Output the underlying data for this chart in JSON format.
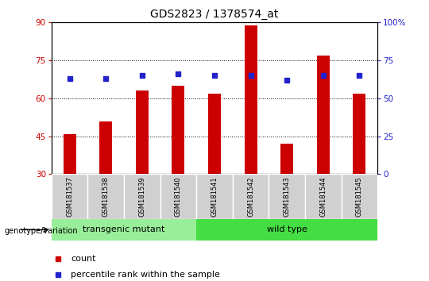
{
  "title": "GDS2823 / 1378574_at",
  "samples": [
    "GSM181537",
    "GSM181538",
    "GSM181539",
    "GSM181540",
    "GSM181541",
    "GSM181542",
    "GSM181543",
    "GSM181544",
    "GSM181545"
  ],
  "counts": [
    46,
    51,
    63,
    65,
    62,
    89,
    42,
    77,
    62
  ],
  "percentiles": [
    63,
    63,
    65,
    66,
    65,
    65,
    62,
    65,
    65
  ],
  "ylim_left": [
    30,
    90
  ],
  "ylim_right": [
    0,
    100
  ],
  "yticks_left": [
    30,
    45,
    60,
    75,
    90
  ],
  "yticks_right": [
    0,
    25,
    50,
    75,
    100
  ],
  "ytick_labels_right": [
    "0",
    "25",
    "50",
    "75",
    "100%"
  ],
  "grid_lines": [
    45,
    60,
    75
  ],
  "bar_color": "#cc0000",
  "dot_color": "#2222cc",
  "transgenic_label": "transgenic mutant",
  "wildtype_label": "wild type",
  "transgenic_indices": [
    0,
    1,
    2,
    3
  ],
  "wildtype_indices": [
    4,
    5,
    6,
    7,
    8
  ],
  "transgenic_color": "#99ee99",
  "wildtype_color": "#44dd44",
  "genotype_label": "genotype/variation",
  "legend_count": "count",
  "legend_percentile": "percentile rank within the sample",
  "bar_width": 0.35,
  "title_fontsize": 10,
  "tick_fontsize": 7.5,
  "left_tick_color": "#cc0000",
  "right_tick_color": "#2222cc",
  "bg_color": "#ffffff"
}
